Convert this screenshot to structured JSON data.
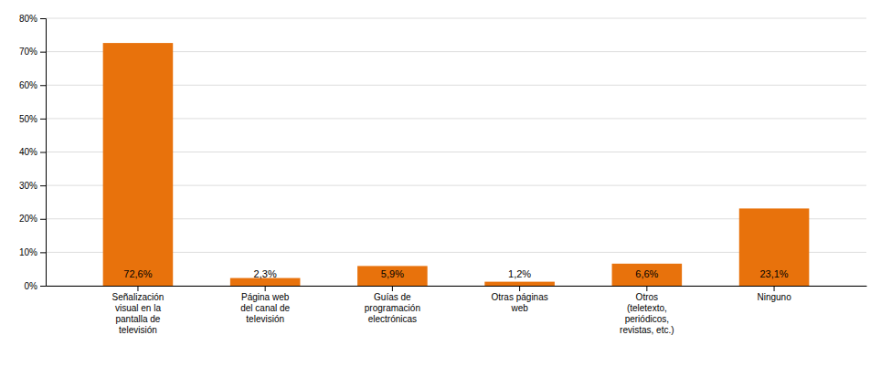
{
  "chart_data": {
    "type": "bar",
    "categories": [
      "Señalización\nvisual en la\npantalla de\ntelevisión",
      "Página web\ndel canal de\ntelevisión",
      "Guías de\nprogramación\nelectrónicas",
      "Otras páginas\nweb",
      "Otros\n(teletexto,\nperiódicos,\nrevistas, etc.)",
      "Ninguno"
    ],
    "values": [
      72.6,
      2.3,
      5.9,
      1.2,
      6.6,
      23.1
    ],
    "value_labels": [
      "72,6%",
      "2,3%",
      "5,9%",
      "1,2%",
      "6,6%",
      "23,1%"
    ],
    "data_labels": true,
    "color": "#E8720C",
    "ylim": [
      0,
      80
    ],
    "yticks": [
      {
        "value": 0,
        "label": "0%"
      },
      {
        "value": 10,
        "label": "10%"
      },
      {
        "value": 20,
        "label": "20%"
      },
      {
        "value": 30,
        "label": "30%"
      },
      {
        "value": 40,
        "label": "40%"
      },
      {
        "value": 50,
        "label": "50%"
      },
      {
        "value": 60,
        "label": "60%"
      },
      {
        "value": 70,
        "label": "70%"
      },
      {
        "value": 80,
        "label": "80%"
      }
    ],
    "grid": true
  }
}
